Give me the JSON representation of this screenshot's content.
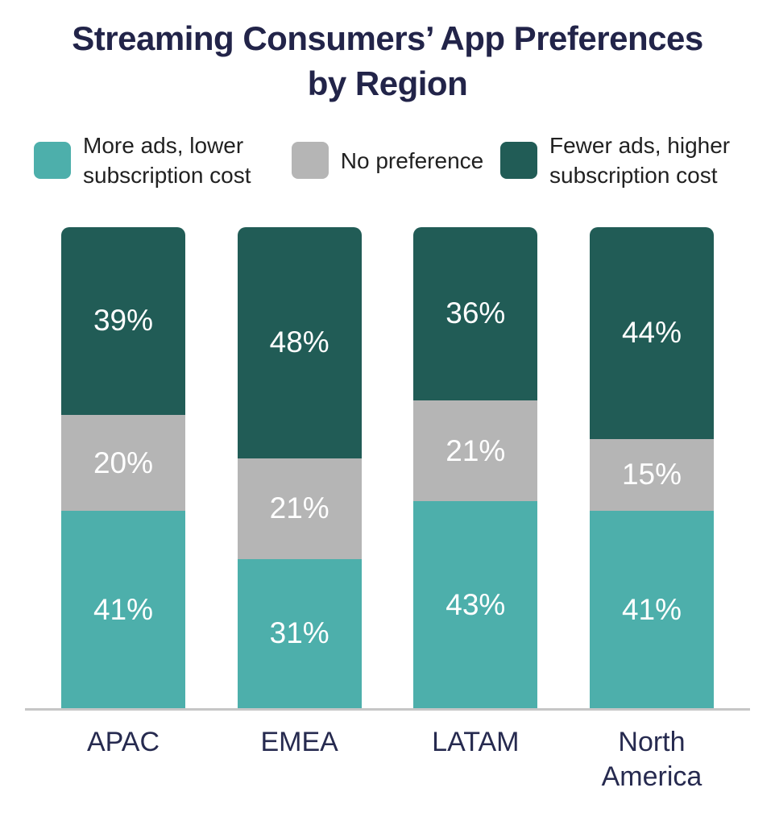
{
  "title": {
    "line1": "Streaming Consumers’ App Preferences",
    "line2": "by Region"
  },
  "legend": {
    "items": [
      {
        "label": "More ads, lower subscription cost",
        "color": "#4dafab"
      },
      {
        "label": "No preference",
        "color": "#b5b5b5"
      },
      {
        "label": "Fewer ads, higher subscription cost",
        "color": "#215c56"
      }
    ]
  },
  "chart_data": {
    "type": "bar",
    "stacked": true,
    "title": "Streaming Consumers’ App Preferences by Region",
    "categories": [
      "APAC",
      "EMEA",
      "LATAM",
      "North America"
    ],
    "series": [
      {
        "name": "More ads, lower subscription cost",
        "color": "#4dafab",
        "values": [
          41,
          31,
          43,
          41
        ]
      },
      {
        "name": "No preference",
        "color": "#b5b5b5",
        "values": [
          20,
          21,
          21,
          15
        ]
      },
      {
        "name": "Fewer ads, higher subscription cost",
        "color": "#215c56",
        "values": [
          39,
          48,
          36,
          44
        ]
      }
    ],
    "value_suffix": "%",
    "xlabel": "",
    "ylabel": "",
    "ylim": [
      0,
      100
    ],
    "grid": false,
    "legend_position": "top",
    "value_label_color": "#ffffff",
    "axis_label_color": "#262a4f",
    "baseline_color": "#c6c6c6",
    "title_color": "#222449"
  }
}
